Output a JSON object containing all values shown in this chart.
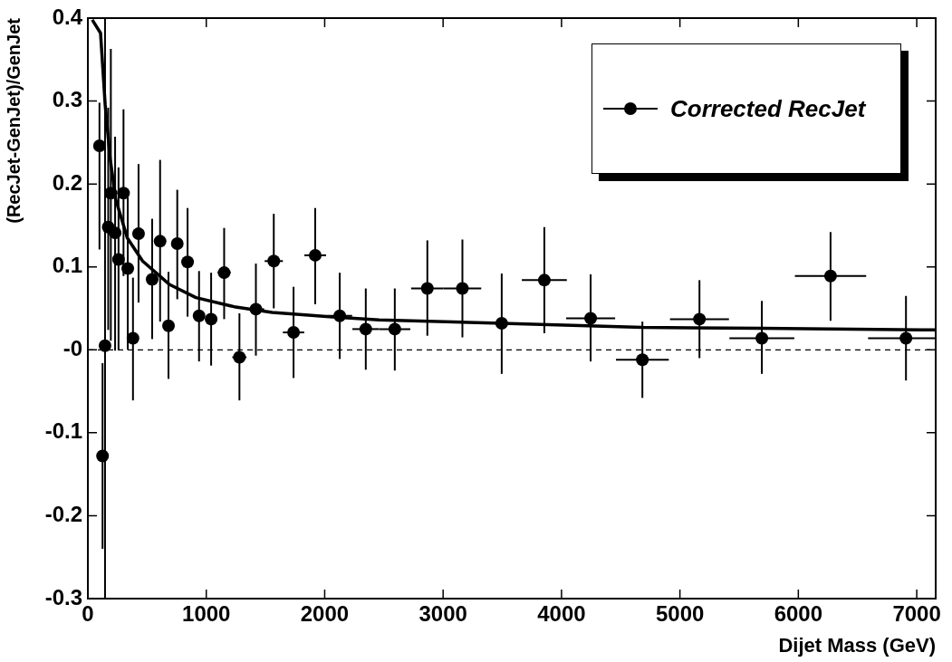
{
  "chart_data": {
    "type": "scatter",
    "xlabel": "Dijet Mass (GeV)",
    "ylabel": "(RecJet-GenJet)/GenJet",
    "xlim": [
      0,
      7160
    ],
    "xticks": [
      0,
      1000,
      2000,
      3000,
      4000,
      5000,
      6000,
      7000
    ],
    "ylim": [
      -0.3,
      0.4
    ],
    "yticks": [
      {
        "value": -0.3,
        "label": "-0.3"
      },
      {
        "value": -0.2,
        "label": "-0.2"
      },
      {
        "value": -0.1,
        "label": "-0.1"
      },
      {
        "value": 0,
        "label": "-0"
      },
      {
        "value": 0.1,
        "label": "0.1"
      },
      {
        "value": 0.2,
        "label": "0.2"
      },
      {
        "value": 0.3,
        "label": "0.3"
      },
      {
        "value": 0.4,
        "label": "0.4"
      }
    ],
    "grid": false,
    "legend": "top right",
    "marker": "circle",
    "ref_lines": [
      {
        "axis": "y",
        "value": 0,
        "line_style": "dashed",
        "color": "#000000"
      }
    ],
    "series": [
      {
        "name": "Corrected RecJet",
        "color": "#000000",
        "x": [
          98,
          124,
          145,
          172,
          194,
          230,
          259,
          301,
          337,
          381,
          428,
          543,
          610,
          681,
          755,
          842,
          939,
          1041,
          1151,
          1280,
          1419,
          1570,
          1737,
          1920,
          2127,
          2347,
          2592,
          2867,
          3163,
          3495,
          3855,
          4246,
          4683,
          5165,
          5692,
          6272,
          6909
        ],
        "values": [
          0.246,
          -0.128,
          0.005,
          0.148,
          0.189,
          0.141,
          0.109,
          0.189,
          0.098,
          0.014,
          0.14,
          0.085,
          0.131,
          0.029,
          0.128,
          0.106,
          0.041,
          0.037,
          0.093,
          -0.009,
          0.049,
          0.107,
          0.021,
          0.114,
          0.041,
          0.025,
          0.025,
          0.074,
          0.074,
          0.032,
          0.084,
          0.038,
          -0.012,
          0.037,
          0.014,
          0.089,
          0.014
        ],
        "errors": [
          [
            0.121,
            0.298
          ],
          [
            -0.24,
            -0.016
          ],
          [
            -0.3,
            0.4
          ],
          [
            0.024,
            0.292
          ],
          [
            0.011,
            0.363
          ],
          [
            -0.001,
            0.257
          ],
          [
            0,
            0.22
          ],
          [
            0.089,
            0.29
          ],
          [
            0,
            0.184
          ],
          [
            -0.061,
            0.087
          ],
          [
            0.057,
            0.224
          ],
          [
            0.013,
            0.158
          ],
          [
            0.034,
            0.229
          ],
          [
            -0.035,
            0.094
          ],
          [
            0.061,
            0.193
          ],
          [
            0.04,
            0.171
          ],
          [
            -0.014,
            0.095
          ],
          [
            -0.019,
            0.093
          ],
          [
            0.037,
            0.147
          ],
          [
            -0.061,
            0.044
          ],
          [
            -0.007,
            0.104
          ],
          [
            0.05,
            0.164
          ],
          [
            -0.034,
            0.076
          ],
          [
            0.055,
            0.171
          ],
          [
            -0.011,
            0.093
          ],
          [
            -0.024,
            0.074
          ],
          [
            -0.025,
            0.074
          ],
          [
            0.017,
            0.132
          ],
          [
            0.015,
            0.133
          ],
          [
            -0.029,
            0.092
          ],
          [
            0.02,
            0.148
          ],
          [
            -0.014,
            0.091
          ],
          [
            -0.058,
            0.034
          ],
          [
            -0.01,
            0.084
          ],
          [
            -0.029,
            0.059
          ],
          [
            0.035,
            0.142
          ],
          [
            -0.037,
            0.065
          ]
        ],
        "xerrors": [
          null,
          null,
          null,
          null,
          null,
          null,
          null,
          null,
          null,
          null,
          null,
          null,
          null,
          null,
          null,
          null,
          null,
          null,
          55,
          60,
          70,
          77,
          90,
          92,
          105,
          113,
          131,
          137,
          159,
          170,
          190,
          207,
          223,
          249,
          274,
          301,
          320
        ]
      },
      {
        "type": "line",
        "color": "#000000",
        "marker": "none",
        "line_style": "solid",
        "x": [
          37,
          107,
          146,
          188,
          236,
          333,
          462,
          687,
          913,
          1235,
          1557,
          2040,
          2459,
          3495,
          4683,
          5692,
          7160
        ],
        "values": [
          0.398,
          0.382,
          0.296,
          0.231,
          0.181,
          0.135,
          0.107,
          0.079,
          0.063,
          0.052,
          0.045,
          0.04,
          0.036,
          0.032,
          0.027,
          0.026,
          0.024
        ]
      }
    ]
  }
}
